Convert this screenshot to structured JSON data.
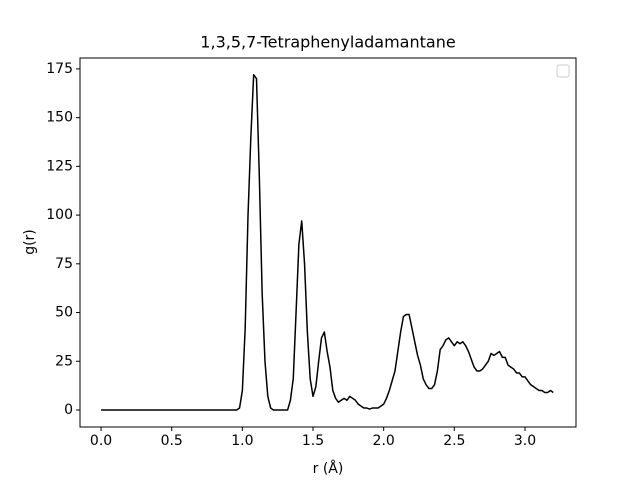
{
  "chart_data": {
    "type": "line",
    "title": "1,3,5,7-Tetraphenyladamantane",
    "x_label": "r (Å)",
    "y_label": "g(r)",
    "x": [
      0,
      0.02,
      0.04,
      0.06,
      0.08,
      0.1,
      0.12,
      0.14,
      0.16,
      0.18,
      0.2,
      0.22,
      0.24,
      0.26,
      0.28,
      0.3,
      0.32,
      0.34,
      0.36,
      0.38,
      0.4,
      0.42,
      0.44,
      0.46,
      0.48,
      0.5,
      0.52,
      0.54,
      0.56,
      0.58,
      0.6,
      0.62,
      0.64,
      0.66,
      0.68,
      0.7,
      0.72,
      0.74,
      0.76,
      0.78,
      0.8,
      0.82,
      0.84,
      0.86,
      0.88,
      0.9,
      0.92,
      0.94,
      0.96,
      0.98,
      1.0,
      1.02,
      1.04,
      1.06,
      1.08,
      1.1,
      1.12,
      1.14,
      1.16,
      1.18,
      1.2,
      1.22,
      1.24,
      1.26,
      1.28,
      1.3,
      1.32,
      1.34,
      1.36,
      1.38,
      1.4,
      1.42,
      1.44,
      1.46,
      1.48,
      1.5,
      1.52,
      1.54,
      1.56,
      1.58,
      1.6,
      1.62,
      1.64,
      1.66,
      1.68,
      1.7,
      1.72,
      1.74,
      1.76,
      1.78,
      1.8,
      1.82,
      1.84,
      1.86,
      1.88,
      1.9,
      1.92,
      1.94,
      1.96,
      1.98,
      2.0,
      2.02,
      2.04,
      2.06,
      2.08,
      2.1,
      2.12,
      2.14,
      2.16,
      2.18,
      2.2,
      2.22,
      2.24,
      2.26,
      2.28,
      2.3,
      2.32,
      2.34,
      2.36,
      2.38,
      2.4,
      2.42,
      2.44,
      2.46,
      2.48,
      2.5,
      2.52,
      2.54,
      2.56,
      2.58,
      2.6,
      2.62,
      2.64,
      2.66,
      2.68,
      2.7,
      2.72,
      2.74,
      2.76,
      2.78,
      2.8,
      2.82,
      2.84,
      2.86,
      2.88,
      2.9,
      2.92,
      2.94,
      2.96,
      2.98,
      3.0,
      3.02,
      3.04,
      3.06,
      3.08,
      3.1,
      3.12,
      3.14,
      3.16,
      3.18,
      3.2
    ],
    "values": [
      0,
      0,
      0,
      0,
      0,
      0,
      0,
      0,
      0,
      0,
      0,
      0,
      0,
      0,
      0,
      0,
      0,
      0,
      0,
      0,
      0,
      0,
      0,
      0,
      0,
      0,
      0,
      0,
      0,
      0,
      0,
      0,
      0,
      0,
      0,
      0,
      0,
      0,
      0,
      0,
      0,
      0,
      0,
      0,
      0,
      0,
      0,
      0,
      0,
      1,
      10,
      42,
      100,
      140,
      172,
      170,
      120,
      60,
      25,
      7,
      1,
      0,
      0,
      0,
      0,
      0,
      0,
      5,
      16,
      50,
      85,
      97,
      75,
      40,
      16,
      7,
      12,
      25,
      37,
      40,
      30,
      22,
      10,
      6,
      4,
      5,
      6,
      5,
      7,
      6,
      5,
      3,
      2,
      1,
      1,
      0.5,
      1,
      1,
      1,
      2,
      3,
      6,
      10,
      15,
      20,
      30,
      40,
      48,
      49,
      49,
      42,
      35,
      28,
      23,
      16,
      13,
      11,
      11,
      13,
      20,
      31,
      33,
      36,
      37,
      35,
      33,
      35,
      34,
      35,
      33,
      30,
      26,
      22,
      20,
      20,
      21,
      23,
      25,
      29,
      28,
      29,
      30,
      27,
      27,
      23,
      22,
      21,
      19,
      19,
      17,
      17,
      15,
      13,
      12,
      11,
      10,
      10,
      9,
      9,
      10,
      9
    ],
    "color": "#000000",
    "xlim": [
      -0.149,
      3.361
    ],
    "xticks": [
      {
        "value": 0,
        "label": "0.0"
      },
      0.5,
      {
        "value": 1,
        "label": "1.0"
      },
      1.5,
      {
        "value": 2,
        "label": "2.0"
      },
      2.5,
      {
        "value": 3,
        "label": "3.0"
      }
    ],
    "ylim": [
      -8.72,
      180.6
    ],
    "yticks": [
      0,
      25,
      50,
      75,
      100,
      125,
      150,
      175
    ],
    "grid": false,
    "legend": "upper right"
  }
}
